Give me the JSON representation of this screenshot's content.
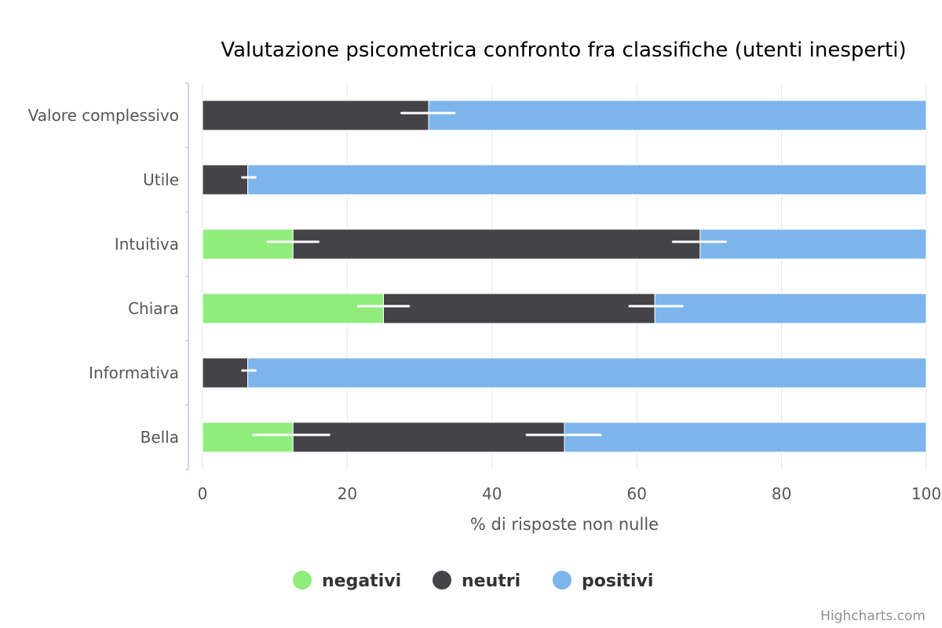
{
  "chart_data": {
    "type": "bar",
    "stacking": "percent",
    "title": "Valutazione psicometrica confronto fra classifiche (utenti inesperti)",
    "xlabel": "% di risposte non nulle",
    "categories": [
      "Valore complessivo",
      "Utile",
      "Intuitiva",
      "Chiara",
      "Informativa",
      "Bella"
    ],
    "series": [
      {
        "name": "negativi",
        "color": "#90ed7d",
        "values": [
          0,
          0,
          12.5,
          25,
          0,
          12.5
        ]
      },
      {
        "name": "neutri",
        "color": "#434348",
        "values": [
          31.25,
          6.25,
          56.25,
          37.5,
          6.25,
          37.5
        ]
      },
      {
        "name": "positivi",
        "color": "#7cb5ec",
        "values": [
          68.75,
          93.75,
          31.25,
          37.5,
          93.75,
          50
        ]
      }
    ],
    "error_bars": [
      {
        "series": "negativi",
        "ranges": [
          null,
          null,
          [
            9,
            16
          ],
          [
            21.5,
            28.5
          ],
          null,
          [
            7,
            17.5
          ]
        ]
      },
      {
        "series": "neutri",
        "ranges": [
          [
            27.5,
            34.8
          ],
          [
            5.5,
            7.3
          ],
          [
            65,
            72.3
          ],
          [
            59,
            66.3
          ],
          [
            5.5,
            7.3
          ],
          [
            44.8,
            55
          ]
        ]
      }
    ],
    "xlim": [
      0,
      100
    ],
    "ticks": [
      "0",
      "20",
      "40",
      "60",
      "80",
      "100"
    ],
    "grid": true,
    "legend_position": "bottom-center",
    "credits": "Highcharts.com"
  }
}
